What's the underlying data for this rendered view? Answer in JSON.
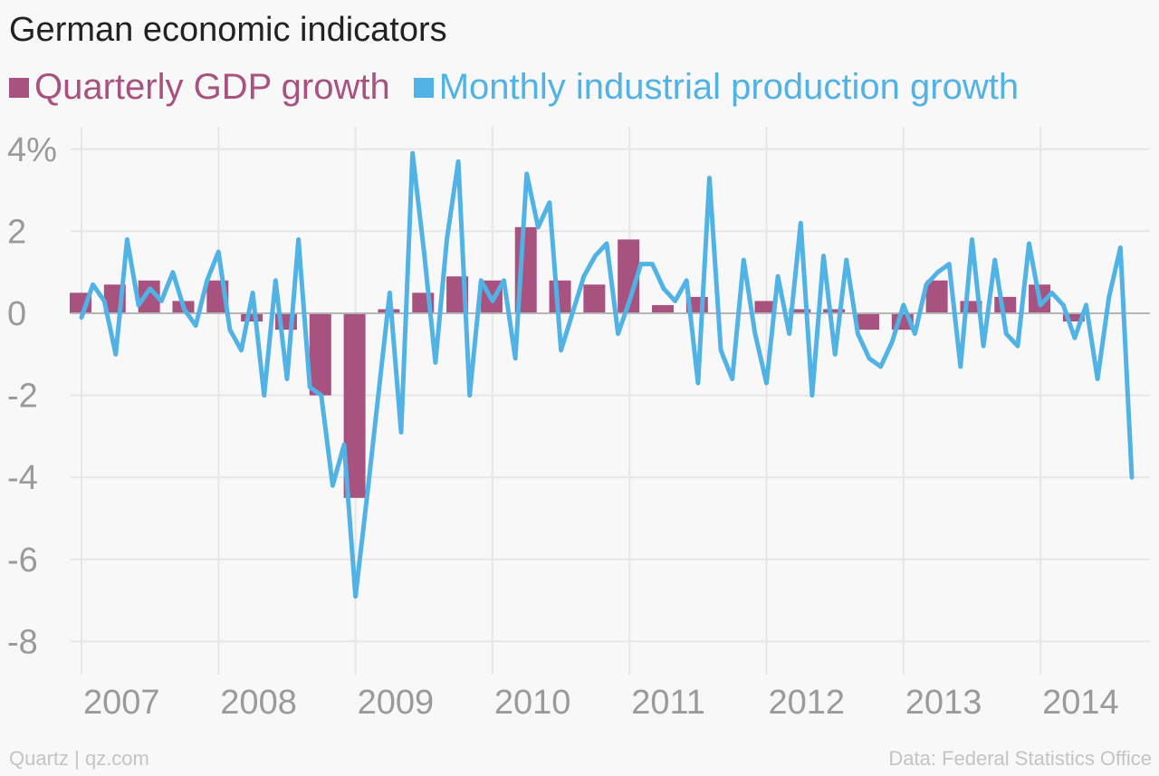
{
  "title": "German economic indicators",
  "footer": {
    "credit": "Quartz | qz.com",
    "source": "Data: Federal Statistics Office"
  },
  "chart_data": {
    "type": "bar+line",
    "title": "German economic indicators",
    "ylim": [
      -8.8,
      4.6
    ],
    "yticks": [
      4,
      2,
      0,
      -2,
      -4,
      -6,
      -8
    ],
    "ytick_labels": [
      "4%",
      "2",
      "0",
      "-2",
      "-4",
      "-6",
      "-8"
    ],
    "xticks": [
      2007,
      2008,
      2009,
      2010,
      2011,
      2012,
      2013,
      2014
    ],
    "xtick_labels": [
      "2007",
      "2008",
      "2009",
      "2010",
      "2011",
      "2012",
      "2013",
      "2014"
    ],
    "xlim": [
      2007,
      2014.75
    ],
    "grid": true,
    "legend_position": "top-left",
    "series": [
      {
        "name": "Quarterly GDP growth",
        "kind": "bar",
        "color": "#a8527f",
        "x": [
          2007.0,
          2007.25,
          2007.5,
          2007.75,
          2008.0,
          2008.25,
          2008.5,
          2008.75,
          2009.0,
          2009.25,
          2009.5,
          2009.75,
          2010.0,
          2010.25,
          2010.5,
          2010.75,
          2011.0,
          2011.25,
          2011.5,
          2011.75,
          2012.0,
          2012.25,
          2012.5,
          2012.75,
          2013.0,
          2013.25,
          2013.5,
          2013.75,
          2014.0,
          2014.25
        ],
        "values": [
          0.5,
          0.7,
          0.8,
          0.3,
          0.8,
          -0.2,
          -0.4,
          -2.0,
          -4.5,
          0.1,
          0.5,
          0.9,
          0.8,
          2.1,
          0.8,
          0.7,
          1.8,
          0.2,
          0.4,
          0.0,
          0.3,
          0.1,
          0.1,
          -0.4,
          -0.4,
          0.8,
          0.3,
          0.4,
          0.7,
          -0.2
        ]
      },
      {
        "name": "Monthly industrial production growth",
        "kind": "line",
        "color": "#51b2e5",
        "x_start": 2007.0,
        "x_step_months": 1,
        "values": [
          -0.1,
          0.7,
          0.3,
          -1.0,
          1.8,
          0.2,
          0.6,
          0.3,
          1.0,
          0.1,
          -0.3,
          0.8,
          1.5,
          -0.4,
          -0.9,
          0.5,
          -2.0,
          0.8,
          -1.6,
          1.8,
          -1.8,
          -2.0,
          -4.2,
          -3.2,
          -6.9,
          -4.5,
          -2.0,
          0.5,
          -2.9,
          3.9,
          1.5,
          -1.2,
          1.8,
          3.7,
          -2.0,
          0.8,
          0.3,
          0.8,
          -1.1,
          3.4,
          2.1,
          2.7,
          -0.9,
          0.0,
          0.9,
          1.4,
          1.7,
          -0.5,
          0.3,
          1.2,
          1.2,
          0.6,
          0.3,
          0.8,
          -1.7,
          3.3,
          -0.9,
          -1.6,
          1.3,
          -0.5,
          -1.7,
          0.9,
          -0.5,
          2.2,
          -2.0,
          1.4,
          -1.0,
          1.3,
          -0.5,
          -1.1,
          -1.3,
          -0.7,
          0.2,
          -0.5,
          0.7,
          1.0,
          1.2,
          -1.3,
          1.8,
          -0.8,
          1.3,
          -0.5,
          -0.8,
          1.7,
          0.2,
          0.5,
          0.2,
          -0.6,
          0.2,
          -1.6,
          0.4,
          1.6,
          -4.0
        ]
      }
    ]
  }
}
